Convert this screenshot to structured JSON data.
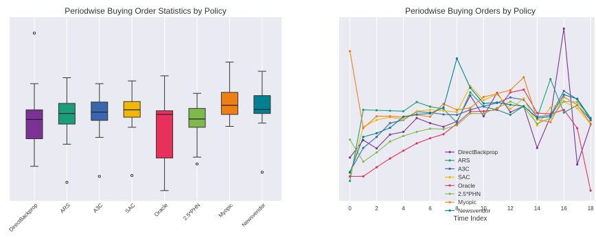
{
  "chart_data": [
    {
      "type": "box",
      "title": "Periodwise Buying Order Statistics by Policy",
      "xlabel": "",
      "ylabel": "",
      "ylim": [
        -2,
        38
      ],
      "grid": true,
      "categories": [
        "DirectBackprop",
        "ARS",
        "A3C",
        "SAC",
        "Oracle",
        "2.5*PHN",
        "Myopic",
        "Newsvendor"
      ],
      "colors": [
        "#7b3294",
        "#1a9e77",
        "#3a66ae",
        "#f2b701",
        "#e7315b",
        "#80b94b",
        "#ee7f12",
        "#008090"
      ],
      "boxes": [
        {
          "whisker_low": 5.5,
          "q1": 11.5,
          "median": 15.7,
          "q3": 17.8,
          "whisker_high": 23.5,
          "outliers": [
            34.5
          ]
        },
        {
          "whisker_low": 10.3,
          "q1": 14.7,
          "median": 17.0,
          "q3": 19.2,
          "whisker_high": 24.8,
          "outliers": [
            2.0
          ]
        },
        {
          "whisker_low": 11.8,
          "q1": 15.5,
          "median": 17.3,
          "q3": 19.5,
          "whisker_high": 23.5,
          "outliers": [
            3.3
          ]
        },
        {
          "whisker_low": 14.0,
          "q1": 16.2,
          "median": 17.8,
          "q3": 19.6,
          "whisker_high": 24.1,
          "outliers": [
            3.5
          ]
        },
        {
          "whisker_low": 0.2,
          "q1": 7.3,
          "median": 16.8,
          "q3": 17.6,
          "whisker_high": 25.2,
          "outliers": []
        },
        {
          "whisker_low": 7.5,
          "q1": 14.0,
          "median": 15.8,
          "q3": 18.1,
          "whisker_high": 21.4,
          "outliers": [
            6.0
          ]
        },
        {
          "whisker_low": 14.2,
          "q1": 16.8,
          "median": 18.8,
          "q3": 21.6,
          "whisker_high": 28.2,
          "outliers": []
        },
        {
          "whisker_low": 14.9,
          "q1": 17.0,
          "median": 17.9,
          "q3": 20.9,
          "whisker_high": 26.2,
          "outliers": [
            4.2
          ]
        }
      ]
    },
    {
      "type": "line",
      "title": "Periodwise Buying Orders by Policy",
      "xlabel": "Time Index",
      "ylabel": "",
      "xlim": [
        -0.8,
        18.3
      ],
      "xticks": [
        0,
        2,
        4,
        6,
        8,
        10,
        12,
        14,
        16,
        18
      ],
      "ylim": [
        -2,
        38
      ],
      "grid": true,
      "legend": "center",
      "x": [
        0,
        1,
        2,
        3,
        4,
        5,
        6,
        7,
        8,
        9,
        10,
        11,
        12,
        13,
        14,
        15,
        16,
        17,
        18
      ],
      "series": [
        {
          "name": "DirectBackprop",
          "color": "#7b3294",
          "values": [
            7.4,
            11.2,
            9.4,
            12.4,
            13.0,
            16.0,
            14.9,
            14.1,
            15.3,
            20.9,
            16.4,
            21.5,
            17.3,
            18.6,
            9.5,
            16.3,
            35.5,
            5.9,
            14.6
          ]
        },
        {
          "name": "ARS",
          "color": "#1a9e77",
          "values": [
            2.3,
            17.8,
            17.7,
            17.6,
            17.5,
            19.5,
            18.5,
            18.0,
            15.0,
            21.6,
            18.5,
            17.8,
            16.7,
            18.6,
            16.1,
            24.5,
            17.2,
            18.8,
            15.6
          ]
        },
        {
          "name": "A3C",
          "color": "#3a66ae",
          "values": [
            4.3,
            9.5,
            11.9,
            14.9,
            15.6,
            17.4,
            17.2,
            16.8,
            16.7,
            17.8,
            18.6,
            19.3,
            20.5,
            20.0,
            16.3,
            16.6,
            21.9,
            20.1,
            15.5
          ]
        },
        {
          "name": "SAC",
          "color": "#f2b701",
          "values": [
            3.2,
            14.1,
            15.6,
            16.2,
            15.7,
            17.5,
            17.8,
            17.6,
            17.3,
            23.0,
            19.9,
            21.2,
            18.0,
            20.3,
            14.4,
            18.3,
            19.6,
            18.1,
            14.7
          ]
        },
        {
          "name": "Oracle",
          "color": "#e7315b",
          "values": [
            3.3,
            3.3,
            5.3,
            7.2,
            8.9,
            10.5,
            11.6,
            12.5,
            14.8,
            17.4,
            17.5,
            17.8,
            21.6,
            22.2,
            17.1,
            16.9,
            17.8,
            13.8,
            0.2
          ]
        },
        {
          "name": "2.5*PHN",
          "color": "#80b94b",
          "values": [
            11.3,
            6.5,
            8.5,
            10.9,
            12.1,
            13.0,
            13.7,
            13.6,
            14.4,
            17.0,
            17.0,
            18.2,
            19.6,
            18.4,
            14.8,
            16.0,
            19.6,
            19.5,
            16.0
          ]
        },
        {
          "name": "Myopic",
          "color": "#ee7f12",
          "values": [
            30.6,
            13.8,
            16.4,
            16.4,
            16.2,
            16.7,
            16.3,
            19.1,
            17.8,
            18.2,
            20.6,
            21.3,
            22.1,
            24.9,
            15.7,
            15.1,
            20.6,
            18.9,
            14.8
          ]
        },
        {
          "name": "Newsvendor",
          "color": "#008090",
          "values": [
            4.1,
            11.9,
            12.7,
            13.9,
            16.3,
            16.8,
            17.0,
            18.3,
            29.0,
            22.6,
            19.2,
            19.4,
            18.9,
            18.6,
            16.0,
            16.3,
            21.1,
            20.2,
            16.0
          ]
        }
      ]
    }
  ]
}
